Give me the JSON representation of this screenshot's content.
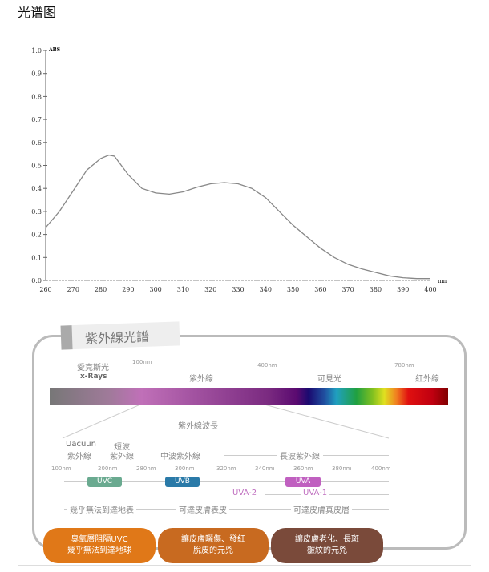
{
  "title": "光谱图",
  "chart_data": {
    "type": "line",
    "title": "",
    "xlabel": "nm",
    "ylabel": "ABS",
    "xlim": [
      260,
      400
    ],
    "ylim": [
      0,
      1.0
    ],
    "grid": false,
    "x_ticks": [
      "260",
      "270",
      "280",
      "290",
      "300",
      "310",
      "320",
      "330",
      "340",
      "350",
      "360",
      "370",
      "380",
      "390",
      "400"
    ],
    "y_ticks": [
      "0.0",
      "0.1",
      "0.2",
      "0.3",
      "0.4",
      "0.5",
      "0.6",
      "0.7",
      "0.8",
      "0.9",
      "1.0"
    ],
    "x": [
      260,
      265,
      270,
      275,
      280,
      283,
      285,
      290,
      295,
      300,
      305,
      310,
      315,
      320,
      325,
      330,
      335,
      340,
      345,
      350,
      355,
      360,
      365,
      370,
      375,
      380,
      385,
      390,
      395,
      400
    ],
    "y": [
      0.23,
      0.3,
      0.39,
      0.48,
      0.53,
      0.545,
      0.54,
      0.46,
      0.4,
      0.38,
      0.375,
      0.385,
      0.405,
      0.42,
      0.425,
      0.42,
      0.4,
      0.36,
      0.3,
      0.24,
      0.19,
      0.14,
      0.1,
      0.07,
      0.05,
      0.035,
      0.02,
      0.012,
      0.008,
      0.008
    ],
    "line_color": "#888888"
  },
  "diagram": {
    "title": "紫外線光譜",
    "top_marks": [
      "100nm",
      "400nm",
      "780nm"
    ],
    "regions": [
      "愛克斯光",
      "x-Rays",
      "紫外線",
      "可見光",
      "紅外線"
    ],
    "sub_title": "紫外線波長",
    "bands": [
      "Uacuun",
      "紫外線",
      "短波",
      "紫外線",
      "中波紫外線",
      "長波紫外線"
    ],
    "nm_ticks": [
      "100nm",
      "200nm",
      "280nm",
      "300nm",
      "320nm",
      "340nm",
      "360nm",
      "380nm",
      "400nm"
    ],
    "uvc": "UVC",
    "uvb": "UVB",
    "uva": "UVA",
    "uva2": "UVA-2",
    "uva1": "UVA-1",
    "uvc_color": "#6aaa90",
    "uvb_color": "#2a7aa8",
    "uva_color": "#c060c0",
    "reach": [
      "幾乎無法到達地表",
      "可達皮膚表皮",
      "可達皮膚真皮層"
    ],
    "bubbles": [
      {
        "l1": "臭氧層阻隔UVC",
        "l2": "幾乎無法到達地球",
        "color": "#e07818"
      },
      {
        "l1": "讓皮膚曬傷、發紅",
        "l2": "脫皮的元兇",
        "color": "#c86a20"
      },
      {
        "l1": "讓皮膚老化、長斑",
        "l2": "皺紋的元兇",
        "color": "#7a4a3a"
      }
    ]
  }
}
